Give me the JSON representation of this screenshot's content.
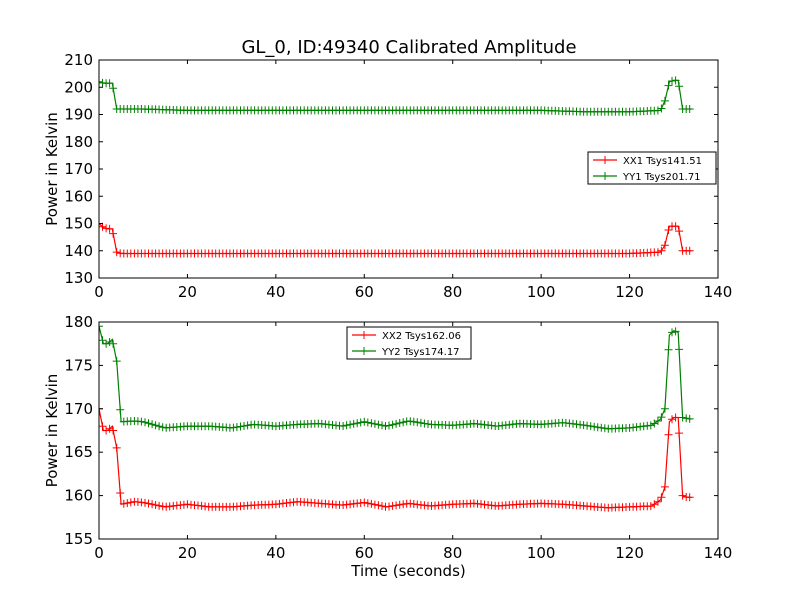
{
  "figure_title": "GL_0, ID:49340 Calibrated Amplitude",
  "chart_data": [
    {
      "type": "line",
      "title": "GL_0, ID:49340 Calibrated Amplitude",
      "xlabel": "",
      "ylabel": "Power in Kelvin",
      "xlim": [
        0,
        140
      ],
      "ylim": [
        130,
        210
      ],
      "xticks": [
        0,
        20,
        40,
        60,
        80,
        100,
        120,
        140
      ],
      "yticks": [
        130,
        140,
        150,
        160,
        170,
        180,
        190,
        200,
        210
      ],
      "grid": false,
      "legend_position": "center-right",
      "series": [
        {
          "name": "XX1 Tsys141.51",
          "color": "#ff0000",
          "marker": "plus",
          "x": [
            0,
            1,
            2,
            3,
            4,
            5,
            10,
            20,
            30,
            40,
            50,
            60,
            70,
            80,
            90,
            100,
            110,
            120,
            127,
            128,
            129,
            130,
            131,
            132,
            133,
            134
          ],
          "y": [
            150,
            148.5,
            148,
            148,
            139.5,
            139,
            139,
            139,
            139,
            139,
            139,
            139,
            139,
            139,
            139,
            139,
            139,
            139,
            139.5,
            142,
            149,
            149,
            149,
            140,
            140,
            140
          ]
        },
        {
          "name": "YY1 Tsys201.71",
          "color": "#008000",
          "marker": "plus",
          "x": [
            0,
            1,
            2,
            3,
            4,
            5,
            10,
            20,
            30,
            40,
            50,
            60,
            70,
            80,
            90,
            100,
            110,
            120,
            127,
            128,
            129,
            130,
            131,
            132,
            133,
            134
          ],
          "y": [
            202,
            201.5,
            201.5,
            201.5,
            192,
            192,
            192,
            191.5,
            191.5,
            191.5,
            191.5,
            191.5,
            191.5,
            191.5,
            191.5,
            191.5,
            191,
            191,
            191.5,
            195,
            202,
            202.5,
            202.5,
            192,
            192,
            192
          ]
        }
      ]
    },
    {
      "type": "line",
      "title": "",
      "xlabel": "Time (seconds)",
      "ylabel": "Power in Kelvin",
      "xlim": [
        0,
        140
      ],
      "ylim": [
        155,
        180
      ],
      "xticks": [
        0,
        20,
        40,
        60,
        80,
        100,
        120,
        140
      ],
      "yticks": [
        155,
        160,
        165,
        170,
        175,
        180
      ],
      "grid": false,
      "legend_position": "top-center",
      "series": [
        {
          "name": "XX2 Tsys162.06",
          "color": "#ff0000",
          "marker": "plus",
          "x": [
            0,
            1,
            2,
            3,
            4,
            5,
            8,
            10,
            15,
            20,
            25,
            30,
            35,
            40,
            45,
            50,
            55,
            60,
            65,
            70,
            75,
            80,
            85,
            90,
            95,
            100,
            105,
            110,
            115,
            120,
            125,
            127,
            128,
            129,
            130,
            131,
            132,
            133,
            134
          ],
          "y": [
            170,
            167.5,
            167.5,
            168,
            165.5,
            159,
            159.3,
            159.2,
            158.7,
            159,
            158.7,
            158.7,
            158.9,
            159,
            159.3,
            159.1,
            158.9,
            159.2,
            158.7,
            159.1,
            158.8,
            159,
            159.1,
            158.8,
            159,
            159.1,
            159,
            158.8,
            158.6,
            158.7,
            158.8,
            159.5,
            161,
            168.5,
            169,
            169,
            160,
            159.8,
            159.8
          ]
        },
        {
          "name": "YY2 Tsys174.17",
          "color": "#008000",
          "marker": "plus",
          "x": [
            0,
            1,
            2,
            3,
            4,
            5,
            8,
            10,
            15,
            20,
            25,
            30,
            35,
            40,
            45,
            50,
            55,
            60,
            65,
            70,
            75,
            80,
            85,
            90,
            95,
            100,
            105,
            110,
            115,
            120,
            125,
            127,
            128,
            129,
            130,
            131,
            132,
            133,
            134
          ],
          "y": [
            179.5,
            177.5,
            177.5,
            178,
            175.5,
            168.5,
            168.6,
            168.5,
            167.8,
            168,
            168,
            167.8,
            168.2,
            168,
            168.2,
            168.3,
            168,
            168.5,
            168,
            168.6,
            168.2,
            168.1,
            168.3,
            168,
            168.3,
            168.2,
            168.4,
            168.1,
            167.7,
            167.8,
            168.1,
            168.8,
            170,
            178.5,
            179,
            178.8,
            169,
            168.9,
            168.8
          ]
        }
      ]
    }
  ]
}
